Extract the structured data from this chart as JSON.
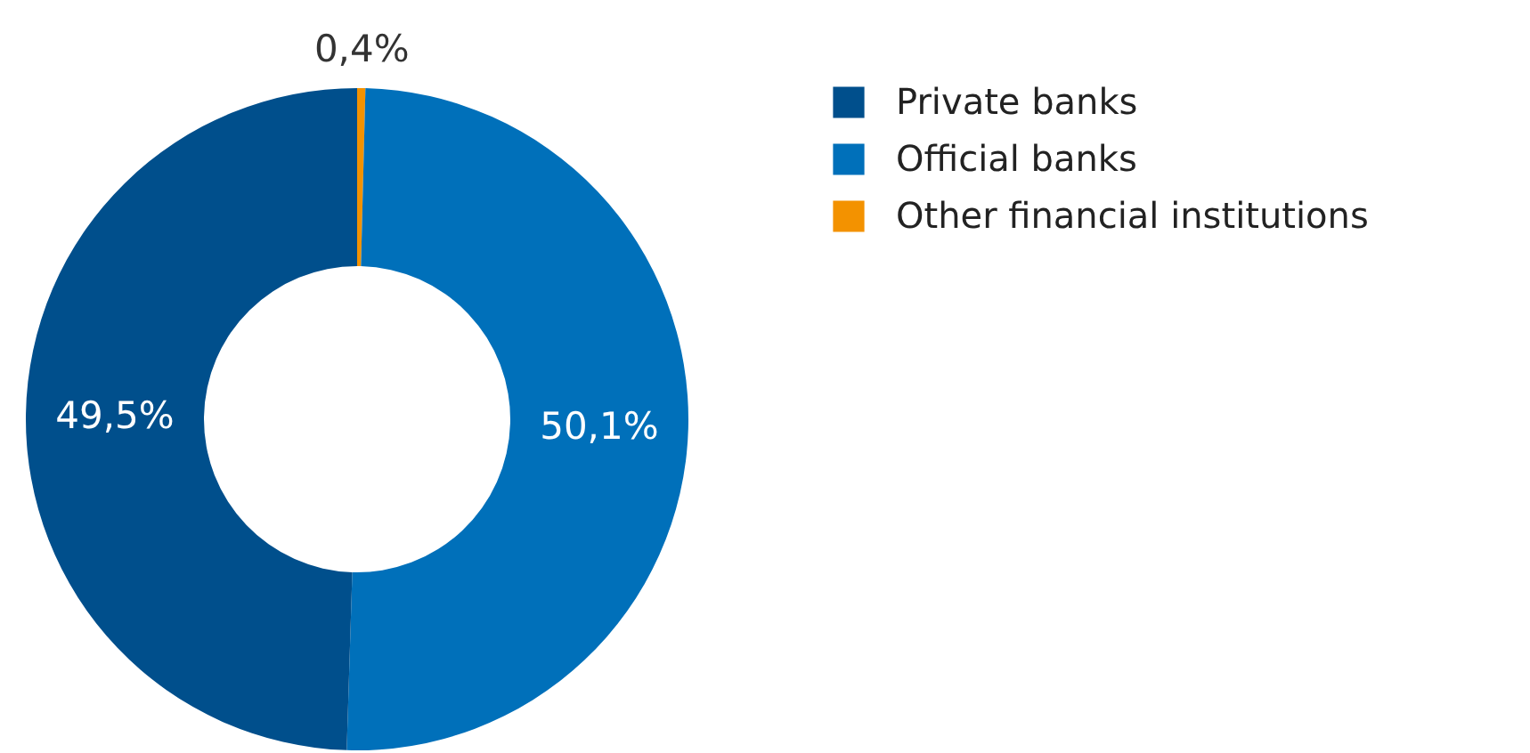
{
  "chart_data": {
    "type": "donut",
    "categories": [
      "Private banks",
      "Official banks",
      "Other financial institutions"
    ],
    "values": [
      49.5,
      50.1,
      0.4
    ],
    "colors": [
      "#004f8c",
      "#0070ba",
      "#f39200"
    ],
    "value_labels": [
      "49,5%",
      "50,1%",
      "0,4%"
    ],
    "legend": "right"
  }
}
